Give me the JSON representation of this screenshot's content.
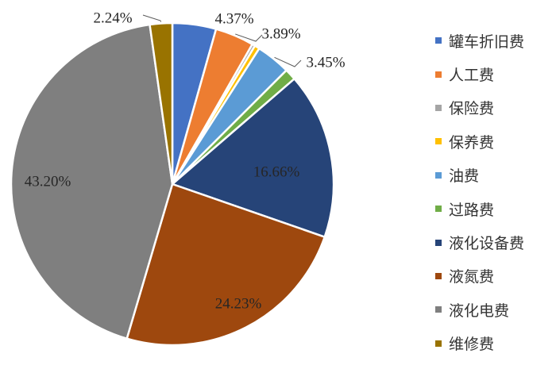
{
  "chart_data": {
    "type": "pie",
    "title": "",
    "categories": [
      "罐车折旧费",
      "人工费",
      "保险费",
      "保养费",
      "油费",
      "过路费",
      "液化设备费",
      "液氮费",
      "液化电费",
      "维修费"
    ],
    "values": [
      4.37,
      3.89,
      0.3,
      0.5,
      3.45,
      1.15,
      16.66,
      24.23,
      43.2,
      2.24
    ],
    "data_labels": [
      "4.37%",
      "3.89%",
      "",
      "",
      "3.45%",
      "",
      "16.66%",
      "24.23%",
      "43.20%",
      "2.24%"
    ],
    "colors": [
      "#4472C4",
      "#ED7D31",
      "#A5A5A5",
      "#FFC000",
      "#5B9BD5",
      "#70AD47",
      "#264478",
      "#9E480E",
      "#7F7F7F",
      "#997300"
    ],
    "unit": "%",
    "legend_position": "right",
    "start_angle": "top, clockwise"
  }
}
